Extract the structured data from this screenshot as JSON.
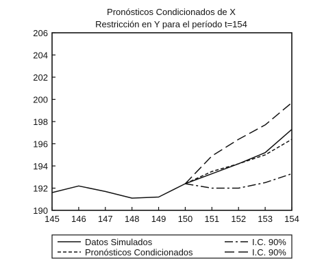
{
  "chart_data": {
    "type": "line",
    "title": "Pronósticos Condicionados de X",
    "subtitle": "Restricción en Y para el período t=154",
    "xlabel": "",
    "ylabel": "",
    "x": [
      145,
      146,
      147,
      148,
      149,
      150,
      151,
      152,
      153,
      154
    ],
    "x_tick_labels": [
      "145",
      "146",
      "147",
      "148",
      "149",
      "150",
      "151",
      "152",
      "153",
      "154"
    ],
    "ylim": [
      190,
      206
    ],
    "y_ticks": [
      190,
      192,
      194,
      196,
      198,
      200,
      202,
      204,
      206
    ],
    "grid": false,
    "legend_position": "bottom",
    "series": [
      {
        "name": "Datos Simulados",
        "style": "solid",
        "x": [
          145,
          146,
          147,
          148,
          149,
          150,
          151,
          152,
          153,
          154
        ],
        "values": [
          191.6,
          192.2,
          191.7,
          191.1,
          191.2,
          192.4,
          193.3,
          194.2,
          195.2,
          197.3
        ]
      },
      {
        "name": "Pronósticos Condicionados",
        "style": "short-dash",
        "x": [
          150,
          151,
          152,
          153,
          154
        ],
        "values": [
          192.4,
          193.5,
          194.2,
          195.0,
          196.4
        ]
      },
      {
        "name": "I.C. 90%",
        "style": "dash-dot",
        "x": [
          150,
          151,
          152,
          153,
          154
        ],
        "values": [
          192.4,
          192.0,
          192.0,
          192.5,
          193.3
        ]
      },
      {
        "name": "I.C. 90%",
        "style": "long-dash",
        "x": [
          150,
          151,
          152,
          153,
          154
        ],
        "values": [
          192.4,
          194.9,
          196.4,
          197.7,
          199.7
        ]
      }
    ]
  }
}
